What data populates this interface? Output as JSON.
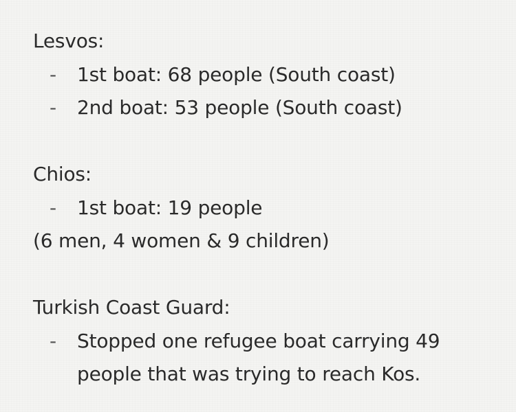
{
  "sections": [
    {
      "heading": "Lesvos:",
      "items": [
        "1st boat: 68 people (South coast)",
        "2nd boat: 53 people (South coast)"
      ]
    },
    {
      "heading": "Chios:",
      "items": [
        "1st boat: 19 people"
      ],
      "note": "(6 men, 4 women & 9 children)"
    },
    {
      "heading": "Turkish Coast Guard:",
      "items_multiline": [
        {
          "line1": "Stopped one refugee boat carrying 49",
          "line2": "people that was trying to reach Kos."
        }
      ]
    }
  ],
  "bullet_glyph": "-"
}
